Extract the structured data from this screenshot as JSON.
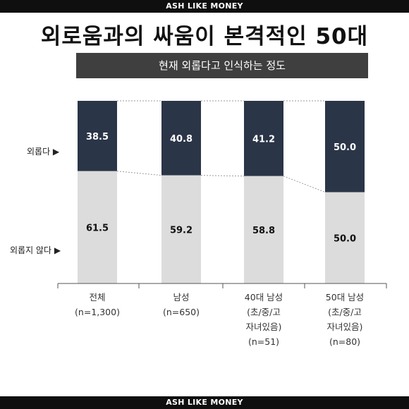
{
  "banner_top": "ASH LIKE MONEY",
  "banner_bottom": "ASH LIKE MONEY",
  "headline": "외로움과의 싸움이 본격적인 50대",
  "chart_data": {
    "type": "bar",
    "stacked": true,
    "title": "현재 외롭다고 인식하는 정도",
    "categories": [
      "전체\n(n=1,300)",
      "남성\n(n=650)",
      "40대 남성\n(초/중/고\n자녀있음)\n(n=51)",
      "50대 남성\n(초/중/고\n자녀있음)\n(n=80)"
    ],
    "series": [
      {
        "name": "외롭다",
        "values": [
          38.5,
          40.8,
          41.2,
          50.0
        ],
        "labels": [
          "38.5",
          "40.8",
          "41.2",
          "50.0"
        ],
        "color": "#2b3548",
        "label_color": "#ffffff"
      },
      {
        "name": "외롭지 않다",
        "values": [
          61.5,
          59.2,
          58.8,
          50.0
        ],
        "labels": [
          "61.5",
          "59.2",
          "58.8",
          "50.0"
        ],
        "color": "#dcdcdc",
        "label_color": "#111111"
      }
    ],
    "ylim": [
      0,
      100
    ],
    "legend": "left",
    "grid": false
  },
  "legend_labels": {
    "lonely": "외롭다 ▶",
    "not_lonely": "외롭지 않다 ▶"
  }
}
